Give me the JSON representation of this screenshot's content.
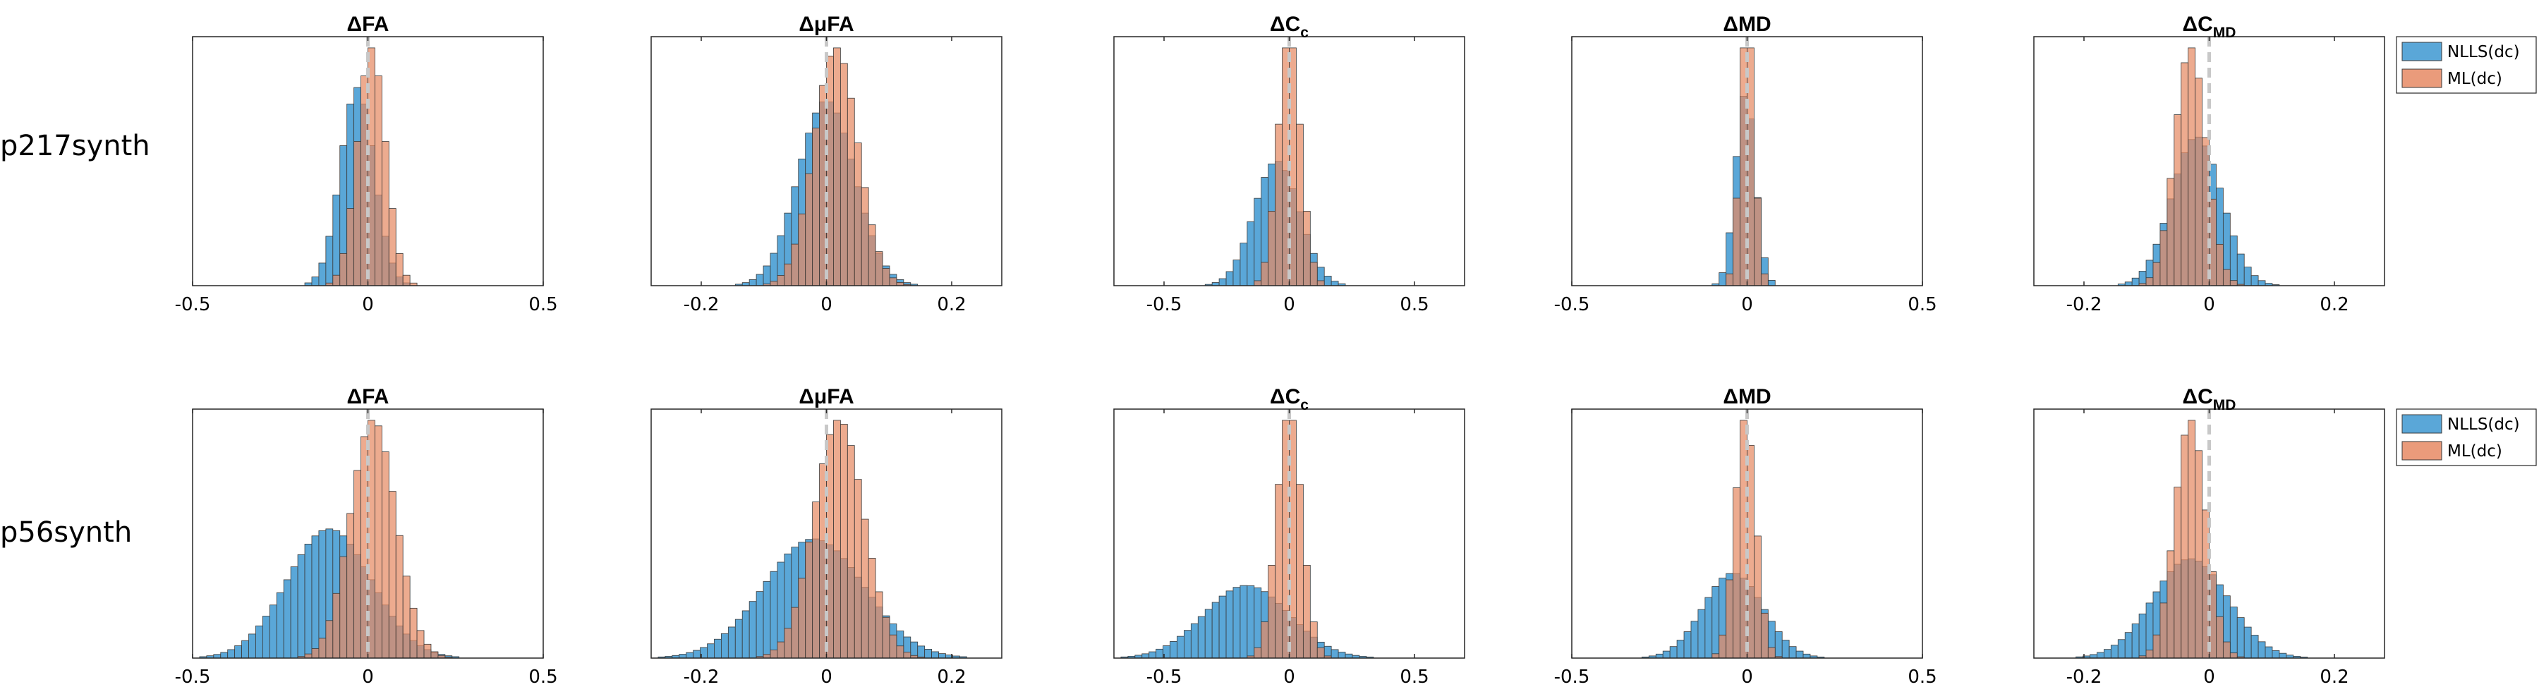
{
  "chart_data": {
    "type": "bar",
    "colors": {
      "NLLS(dc)": "#5aa7d8",
      "ML(dc)": "#e68a64",
      "overlap": "#7a4a3e",
      "zero_line": "#c8c8c8"
    },
    "row_labels": [
      "p217synth",
      "p56synth"
    ],
    "legend": {
      "placement": "right, outside",
      "entries": [
        "NLLS(dc)",
        "ML(dc)"
      ]
    },
    "panels": [
      {
        "row": 0,
        "title": {
          "main": "ΔFA"
        },
        "xlim": [
          -0.5,
          0.5
        ],
        "xticks": [
          -0.5,
          0,
          0.5
        ],
        "zero_line": true,
        "series": [
          {
            "name": "NLLS(dc)",
            "mean": -0.03,
            "sd": 0.048
          },
          {
            "name": "ML(dc)",
            "mean": 0.01,
            "sd": 0.04
          }
        ]
      },
      {
        "row": 0,
        "title": {
          "main": "ΔμFA"
        },
        "xlim": [
          -0.28,
          0.28
        ],
        "xticks": [
          -0.2,
          0,
          0.2
        ],
        "zero_line": true,
        "series": [
          {
            "name": "NLLS(dc)",
            "mean": 0.0,
            "sd": 0.045
          },
          {
            "name": "ML(dc)",
            "mean": 0.015,
            "sd": 0.035
          }
        ]
      },
      {
        "row": 0,
        "title": {
          "main": "ΔC",
          "sub": "c"
        },
        "xlim": [
          -0.7,
          0.7
        ],
        "xticks": [
          -0.5,
          0,
          0.5
        ],
        "zero_line": true,
        "series": [
          {
            "name": "NLLS(dc)",
            "mean": -0.05,
            "sd": 0.09
          },
          {
            "name": "ML(dc)",
            "mean": 0.0,
            "sd": 0.045
          }
        ]
      },
      {
        "row": 0,
        "title": {
          "main": "ΔMD"
        },
        "xlim": [
          -0.5,
          0.5
        ],
        "xticks": [
          -0.5,
          0,
          0.5
        ],
        "zero_line": true,
        "series": [
          {
            "name": "NLLS(dc)",
            "mean": -0.005,
            "sd": 0.028
          },
          {
            "name": "ML(dc)",
            "mean": 0.0,
            "sd": 0.02
          }
        ]
      },
      {
        "row": 0,
        "title": {
          "main": "ΔC",
          "sub": "MD"
        },
        "xlim": [
          -0.28,
          0.28
        ],
        "xticks": [
          -0.2,
          0,
          0.2
        ],
        "zero_line": true,
        "series": [
          {
            "name": "NLLS(dc)",
            "mean": -0.02,
            "sd": 0.04
          },
          {
            "name": "ML(dc)",
            "mean": -0.03,
            "sd": 0.025
          }
        ]
      },
      {
        "row": 1,
        "title": {
          "main": "ΔFA"
        },
        "xlim": [
          -0.5,
          0.5
        ],
        "xticks": [
          -0.5,
          0,
          0.5
        ],
        "zero_line": true,
        "series": [
          {
            "name": "NLLS(dc)",
            "mean": -0.11,
            "sd": 0.12
          },
          {
            "name": "ML(dc)",
            "mean": 0.015,
            "sd": 0.065
          }
        ]
      },
      {
        "row": 1,
        "title": {
          "main": "ΔμFA"
        },
        "xlim": [
          -0.28,
          0.28
        ],
        "xticks": [
          -0.2,
          0,
          0.2
        ],
        "zero_line": true,
        "series": [
          {
            "name": "NLLS(dc)",
            "mean": -0.02,
            "sd": 0.08
          },
          {
            "name": "ML(dc)",
            "mean": 0.02,
            "sd": 0.04
          }
        ]
      },
      {
        "row": 1,
        "title": {
          "main": "ΔC",
          "sub": "c"
        },
        "xlim": [
          -0.7,
          0.7
        ],
        "xticks": [
          -0.5,
          0,
          0.5
        ],
        "zero_line": true,
        "series": [
          {
            "name": "NLLS(dc)",
            "mean": -0.17,
            "sd": 0.17
          },
          {
            "name": "ML(dc)",
            "mean": 0.0,
            "sd": 0.05
          }
        ]
      },
      {
        "row": 1,
        "title": {
          "main": "ΔMD"
        },
        "xlim": [
          -0.5,
          0.5
        ],
        "xticks": [
          -0.5,
          0,
          0.5
        ],
        "zero_line": true,
        "series": [
          {
            "name": "NLLS(dc)",
            "mean": -0.04,
            "sd": 0.085
          },
          {
            "name": "ML(dc)",
            "mean": -0.005,
            "sd": 0.03
          }
        ]
      },
      {
        "row": 1,
        "title": {
          "main": "ΔC",
          "sub": "MD"
        },
        "xlim": [
          -0.28,
          0.28
        ],
        "xticks": [
          -0.2,
          0,
          0.2
        ],
        "zero_line": true,
        "series": [
          {
            "name": "NLLS(dc)",
            "mean": -0.03,
            "sd": 0.06
          },
          {
            "name": "ML(dc)",
            "mean": -0.03,
            "sd": 0.025
          }
        ]
      }
    ]
  }
}
